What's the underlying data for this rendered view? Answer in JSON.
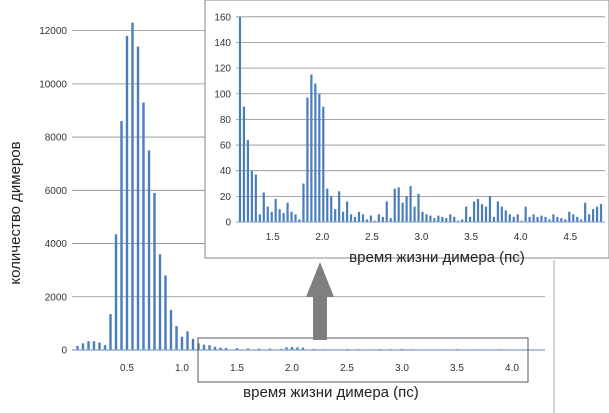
{
  "chart_data": [
    {
      "type": "bar",
      "xlabel": "время жизни димера (пс)",
      "ylabel": "количество димеров",
      "xlim": [
        0,
        4.3
      ],
      "ylim": [
        0,
        13000
      ],
      "yticks": [
        0,
        2000,
        4000,
        6000,
        8000,
        10000,
        12000
      ],
      "xticks": [
        0.5,
        1.0,
        1.5,
        2.0,
        2.5,
        3.0,
        3.5,
        4.0
      ],
      "ytick_labels": [
        "0",
        "2000",
        "4000",
        "6000",
        "8000",
        "10000",
        "12000"
      ],
      "xtick_labels": [
        "0.5",
        "1.0",
        "1.5",
        "2.0",
        "2.5",
        "3.0",
        "3.5",
        "4.0"
      ],
      "grid": "horizontal",
      "color": "#4a7ebb",
      "x": [
        0.05,
        0.1,
        0.15,
        0.2,
        0.25,
        0.3,
        0.35,
        0.4,
        0.45,
        0.5,
        0.55,
        0.6,
        0.65,
        0.7,
        0.75,
        0.8,
        0.85,
        0.9,
        0.95,
        1.0,
        1.05,
        1.1,
        1.15,
        1.2,
        1.25,
        1.3,
        1.35,
        1.4,
        1.5,
        1.6,
        1.7,
        1.8,
        1.9,
        1.95,
        2.0,
        2.05,
        2.1,
        2.2,
        2.3,
        2.4,
        2.5,
        2.6,
        2.7,
        2.8,
        2.9,
        3.0,
        3.1,
        3.2,
        3.3,
        3.4,
        3.5,
        3.6,
        3.7,
        3.8,
        3.9,
        4.0,
        4.1
      ],
      "values": [
        150,
        250,
        330,
        330,
        280,
        180,
        1350,
        4350,
        8600,
        11800,
        12300,
        11400,
        9300,
        7500,
        5900,
        3600,
        2800,
        1500,
        900,
        500,
        700,
        420,
        250,
        200,
        180,
        120,
        90,
        80,
        70,
        60,
        50,
        50,
        40,
        100,
        110,
        100,
        90,
        40,
        30,
        30,
        35,
        30,
        25,
        35,
        30,
        40,
        30,
        25,
        20,
        25,
        30,
        20,
        25,
        20,
        30,
        25,
        20
      ]
    },
    {
      "type": "bar",
      "xlabel": "время жизни димера (пс)",
      "ylabel": "",
      "xlim": [
        1.13,
        4.85
      ],
      "ylim": [
        0,
        170
      ],
      "yticks": [
        0,
        20,
        40,
        60,
        80,
        100,
        120,
        140,
        160
      ],
      "xticks": [
        1.5,
        2.0,
        2.5,
        3.0,
        3.5,
        4.0,
        4.5
      ],
      "ytick_labels": [
        "0",
        "20",
        "40",
        "60",
        "80",
        "100",
        "120",
        "140",
        "160"
      ],
      "xtick_labels": [
        "1.5",
        "2.0",
        "2.5",
        "3.0",
        "3.5",
        "4.0",
        "4.5"
      ],
      "grid": "horizontal",
      "color": "#4a7ebb",
      "x": [
        1.17,
        1.21,
        1.25,
        1.29,
        1.33,
        1.37,
        1.41,
        1.45,
        1.49,
        1.53,
        1.57,
        1.61,
        1.65,
        1.69,
        1.73,
        1.77,
        1.81,
        1.85,
        1.89,
        1.93,
        1.97,
        2.01,
        2.05,
        2.09,
        2.13,
        2.17,
        2.21,
        2.25,
        2.29,
        2.33,
        2.37,
        2.41,
        2.45,
        2.49,
        2.53,
        2.57,
        2.61,
        2.65,
        2.69,
        2.73,
        2.77,
        2.81,
        2.85,
        2.89,
        2.93,
        2.97,
        3.01,
        3.05,
        3.09,
        3.13,
        3.17,
        3.21,
        3.25,
        3.29,
        3.33,
        3.37,
        3.41,
        3.45,
        3.49,
        3.53,
        3.57,
        3.61,
        3.65,
        3.69,
        3.73,
        3.77,
        3.81,
        3.85,
        3.89,
        3.93,
        3.97,
        4.01,
        4.05,
        4.09,
        4.13,
        4.17,
        4.21,
        4.25,
        4.29,
        4.33,
        4.37,
        4.41,
        4.45,
        4.49,
        4.53,
        4.57,
        4.61,
        4.65,
        4.69,
        4.73,
        4.77,
        4.81
      ],
      "values": [
        160,
        90,
        64,
        40,
        37,
        6,
        23,
        12,
        8,
        18,
        10,
        7,
        15,
        8,
        6,
        2,
        30,
        97,
        115,
        108,
        100,
        90,
        26,
        20,
        10,
        24,
        8,
        16,
        6,
        4,
        8,
        6,
        2,
        5,
        1,
        6,
        4,
        16,
        3,
        26,
        27,
        15,
        20,
        28,
        12,
        22,
        8,
        6,
        5,
        3,
        5,
        4,
        3,
        6,
        4,
        1,
        2,
        12,
        4,
        16,
        18,
        14,
        12,
        20,
        4,
        16,
        12,
        9,
        6,
        4,
        6,
        1,
        12,
        4,
        6,
        4,
        5,
        4,
        2,
        6,
        4,
        3,
        2,
        8,
        6,
        4,
        2,
        15,
        6,
        10,
        12,
        14
      ]
    }
  ]
}
